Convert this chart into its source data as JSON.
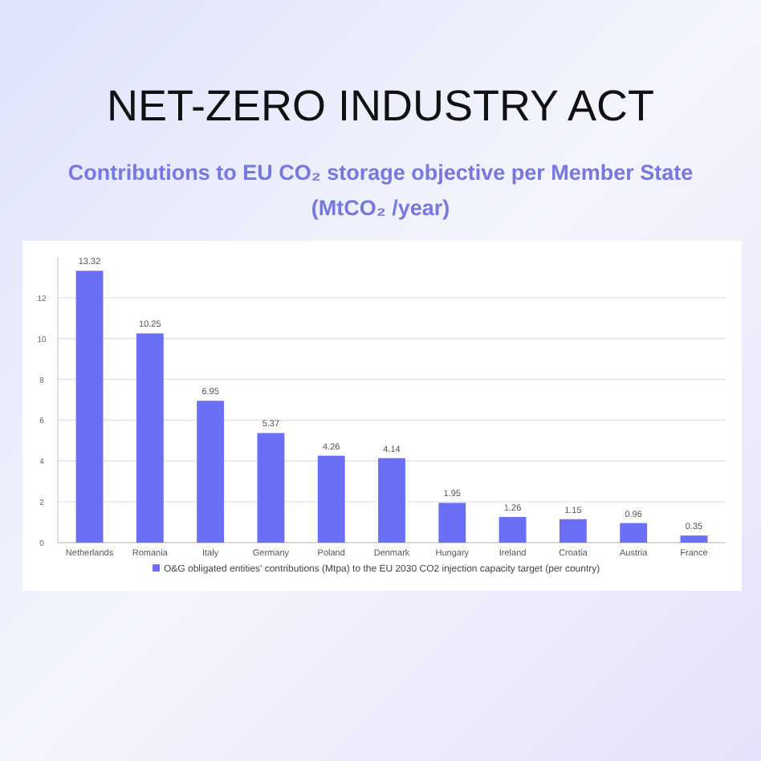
{
  "chart_data": {
    "type": "bar",
    "title": "NET-ZERO INDUSTRY ACT",
    "subtitle": "Contributions to EU CO₂  storage objective per Member State\n(MtCO₂ /year)",
    "categories": [
      "Netherlands",
      "Romania",
      "Italy",
      "Germany",
      "Poland",
      "Denmark",
      "Hungary",
      "Ireland",
      "Croatia",
      "Austria",
      "France"
    ],
    "series": [
      {
        "name": "O&G obligated entities' contributions (Mtpa) to the EU 2030 CO2 injection capacity target (per country)",
        "color": "#6b6ef7",
        "values": [
          13.32,
          10.25,
          6.95,
          5.37,
          4.26,
          4.14,
          1.95,
          1.26,
          1.15,
          0.96,
          0.35
        ]
      }
    ],
    "ylim": [
      0,
      14
    ],
    "yticks": [
      0,
      2,
      4,
      6,
      8,
      10,
      12
    ],
    "grid": "y",
    "data_labels": true,
    "legend": "bottom"
  }
}
